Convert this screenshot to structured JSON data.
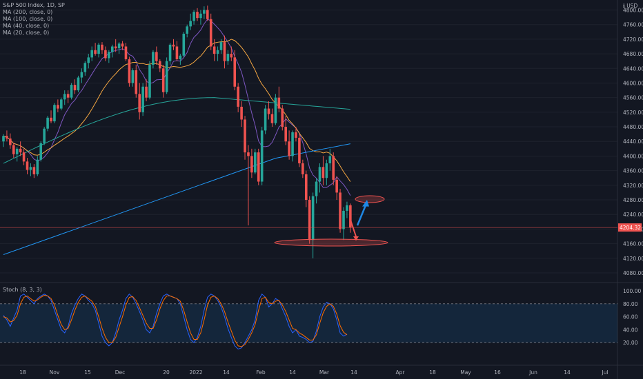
{
  "chart_data": {
    "type": "candlestick",
    "title": "S&P 500 Index, 1D, SP",
    "indicators": [
      "MA (200, close, 0)",
      "MA (100, close, 0)",
      "MA (40, close, 0)",
      "MA (20, close, 0)"
    ],
    "currency_label": "ℹ USD",
    "price_axis": {
      "ticks": [
        4800,
        4760,
        4720,
        4680,
        4640,
        4600,
        4560,
        4520,
        4480,
        4440,
        4400,
        4360,
        4320,
        4280,
        4240,
        4200,
        4160,
        4120,
        4080
      ],
      "ylim": [
        4080,
        4850
      ]
    },
    "current_price": "4204.32",
    "x_axis_labels": [
      "18",
      "Nov",
      "15",
      "Dec",
      "20",
      "2022",
      "14",
      "Feb",
      "14",
      "Mar",
      "14",
      "Apr",
      "18",
      "May",
      "16",
      "Jun",
      "14",
      "Jul"
    ],
    "candles": [
      [
        4440,
        4460,
        4425,
        4455
      ],
      [
        4455,
        4470,
        4440,
        4448
      ],
      [
        4448,
        4462,
        4420,
        4430
      ],
      [
        4430,
        4436,
        4395,
        4405
      ],
      [
        4405,
        4425,
        4385,
        4420
      ],
      [
        4420,
        4440,
        4400,
        4410
      ],
      [
        4410,
        4420,
        4375,
        4385
      ],
      [
        4385,
        4395,
        4350,
        4362
      ],
      [
        4362,
        4380,
        4345,
        4370
      ],
      [
        4370,
        4378,
        4340,
        4350
      ],
      [
        4350,
        4400,
        4345,
        4390
      ],
      [
        4390,
        4440,
        4385,
        4435
      ],
      [
        4435,
        4480,
        4430,
        4475
      ],
      [
        4475,
        4510,
        4468,
        4505
      ],
      [
        4505,
        4525,
        4490,
        4495
      ],
      [
        4495,
        4545,
        4490,
        4540
      ],
      [
        4540,
        4555,
        4520,
        4530
      ],
      [
        4530,
        4560,
        4525,
        4555
      ],
      [
        4555,
        4580,
        4540,
        4570
      ],
      [
        4570,
        4580,
        4545,
        4560
      ],
      [
        4560,
        4600,
        4555,
        4595
      ],
      [
        4595,
        4610,
        4570,
        4580
      ],
      [
        4580,
        4620,
        4575,
        4615
      ],
      [
        4615,
        4640,
        4600,
        4630
      ],
      [
        4630,
        4660,
        4620,
        4655
      ],
      [
        4655,
        4680,
        4640,
        4670
      ],
      [
        4670,
        4700,
        4660,
        4690
      ],
      [
        4690,
        4710,
        4675,
        4680
      ],
      [
        4680,
        4710,
        4670,
        4705
      ],
      [
        4705,
        4712,
        4680,
        4690
      ],
      [
        4690,
        4700,
        4660,
        4668
      ],
      [
        4668,
        4690,
        4655,
        4685
      ],
      [
        4685,
        4705,
        4670,
        4700
      ],
      [
        4700,
        4720,
        4685,
        4695
      ],
      [
        4695,
        4712,
        4680,
        4708
      ],
      [
        4708,
        4715,
        4690,
        4700
      ],
      [
        4700,
        4710,
        4660,
        4665
      ],
      [
        4665,
        4672,
        4590,
        4600
      ],
      [
        4600,
        4640,
        4590,
        4635
      ],
      [
        4635,
        4650,
        4560,
        4570
      ],
      [
        4570,
        4600,
        4500,
        4520
      ],
      [
        4520,
        4600,
        4510,
        4590
      ],
      [
        4590,
        4610,
        4550,
        4560
      ],
      [
        4560,
        4660,
        4555,
        4650
      ],
      [
        4650,
        4690,
        4640,
        4685
      ],
      [
        4685,
        4700,
        4650,
        4660
      ],
      [
        4660,
        4665,
        4630,
        4640
      ],
      [
        4640,
        4650,
        4560,
        4575
      ],
      [
        4575,
        4670,
        4570,
        4660
      ],
      [
        4660,
        4710,
        4650,
        4705
      ],
      [
        4705,
        4720,
        4690,
        4700
      ],
      [
        4700,
        4715,
        4660,
        4665
      ],
      [
        4665,
        4680,
        4650,
        4675
      ],
      [
        4675,
        4740,
        4670,
        4735
      ],
      [
        4735,
        4760,
        4725,
        4755
      ],
      [
        4755,
        4790,
        4745,
        4770
      ],
      [
        4770,
        4800,
        4760,
        4795
      ],
      [
        4795,
        4805,
        4770,
        4778
      ],
      [
        4778,
        4800,
        4760,
        4790
      ],
      [
        4790,
        4810,
        4775,
        4800
      ],
      [
        4800,
        4812,
        4770,
        4775
      ],
      [
        4775,
        4790,
        4690,
        4700
      ],
      [
        4700,
        4720,
        4660,
        4680
      ],
      [
        4680,
        4700,
        4660,
        4690
      ],
      [
        4690,
        4720,
        4680,
        4712
      ],
      [
        4712,
        4730,
        4640,
        4660
      ],
      [
        4660,
        4690,
        4650,
        4680
      ],
      [
        4680,
        4700,
        4660,
        4670
      ],
      [
        4670,
        4690,
        4580,
        4590
      ],
      [
        4590,
        4600,
        4520,
        4535
      ],
      [
        4535,
        4550,
        4480,
        4500
      ],
      [
        4500,
        4510,
        4390,
        4410
      ],
      [
        4410,
        4430,
        4210,
        4400
      ],
      [
        4400,
        4420,
        4340,
        4355
      ],
      [
        4355,
        4420,
        4350,
        4410
      ],
      [
        4410,
        4420,
        4320,
        4330
      ],
      [
        4330,
        4480,
        4320,
        4470
      ],
      [
        4470,
        4540,
        4460,
        4530
      ],
      [
        4530,
        4550,
        4500,
        4515
      ],
      [
        4515,
        4530,
        4480,
        4490
      ],
      [
        4490,
        4570,
        4485,
        4560
      ],
      [
        4560,
        4590,
        4520,
        4530
      ],
      [
        4530,
        4540,
        4470,
        4480
      ],
      [
        4480,
        4510,
        4430,
        4440
      ],
      [
        4440,
        4470,
        4390,
        4400
      ],
      [
        4400,
        4470,
        4385,
        4465
      ],
      [
        4465,
        4480,
        4440,
        4450
      ],
      [
        4450,
        4460,
        4370,
        4380
      ],
      [
        4380,
        4390,
        4340,
        4350
      ],
      [
        4350,
        4360,
        4260,
        4280
      ],
      [
        4280,
        4290,
        4160,
        4170
      ],
      [
        4170,
        4300,
        4120,
        4290
      ],
      [
        4290,
        4340,
        4270,
        4330
      ],
      [
        4330,
        4380,
        4300,
        4370
      ],
      [
        4370,
        4400,
        4320,
        4340
      ],
      [
        4340,
        4390,
        4320,
        4380
      ],
      [
        4380,
        4420,
        4360,
        4400
      ],
      [
        4400,
        4410,
        4320,
        4335
      ],
      [
        4335,
        4345,
        4280,
        4300
      ],
      [
        4300,
        4310,
        4190,
        4200
      ],
      [
        4200,
        4260,
        4170,
        4250
      ],
      [
        4250,
        4275,
        4230,
        4265
      ],
      [
        4265,
        4270,
        4190,
        4204
      ]
    ],
    "stochastic": {
      "label": "Stoch (8, 3, 3)",
      "y_ticks": [
        "100.00",
        "80.00",
        "60.00",
        "40.00",
        "20.00"
      ],
      "upper_band": 80,
      "lower_band": 20,
      "k": [
        62,
        55,
        45,
        58,
        70,
        92,
        95,
        90,
        85,
        80,
        88,
        92,
        95,
        92,
        85,
        70,
        55,
        40,
        35,
        45,
        65,
        78,
        88,
        95,
        92,
        85,
        80,
        70,
        50,
        30,
        20,
        15,
        20,
        35,
        55,
        70,
        88,
        95,
        90,
        80,
        68,
        55,
        40,
        35,
        45,
        65,
        80,
        92,
        95,
        92,
        90,
        88,
        80,
        60,
        40,
        25,
        20,
        28,
        45,
        70,
        90,
        95,
        92,
        85,
        75,
        60,
        42,
        28,
        15,
        10,
        12,
        20,
        30,
        40,
        55,
        85,
        95,
        90,
        75,
        80,
        88,
        85,
        72,
        60,
        45,
        35,
        40,
        30,
        28,
        25,
        20,
        22,
        38,
        60,
        75,
        82,
        80,
        72,
        55,
        35,
        30,
        33
      ],
      "d": [
        60,
        58,
        52,
        54,
        62,
        80,
        90,
        92,
        88,
        84,
        86,
        90,
        93,
        92,
        88,
        78,
        62,
        48,
        40,
        42,
        55,
        70,
        82,
        90,
        92,
        88,
        84,
        76,
        60,
        42,
        28,
        20,
        20,
        28,
        44,
        60,
        78,
        90,
        91,
        85,
        74,
        62,
        50,
        42,
        42,
        55,
        72,
        85,
        92,
        92,
        90,
        88,
        84,
        70,
        52,
        35,
        25,
        25,
        35,
        55,
        78,
        90,
        92,
        88,
        80,
        68,
        52,
        38,
        24,
        15,
        14,
        17,
        25,
        35,
        48,
        70,
        88,
        90,
        82,
        80,
        84,
        85,
        78,
        68,
        55,
        42,
        40,
        35,
        32,
        28,
        24,
        24,
        32,
        50,
        66,
        76,
        80,
        76,
        64,
        46,
        36,
        32
      ]
    }
  }
}
